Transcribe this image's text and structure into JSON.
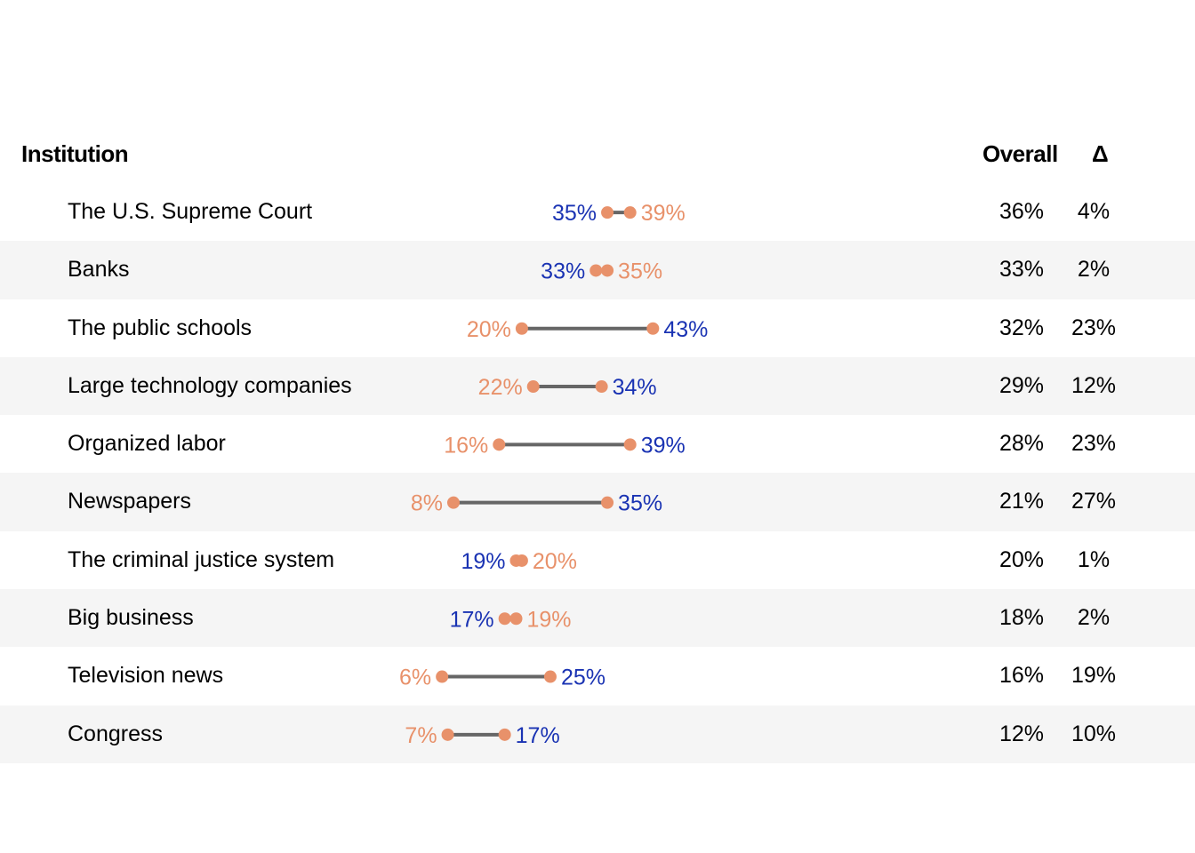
{
  "headers": {
    "institution": "Institution",
    "overall": "Overall",
    "delta": "Δ"
  },
  "colors": {
    "dot": "#e8916a",
    "segment": "#666666",
    "higher_label_blue": "#1a33b3",
    "lower_label_orange": "#e8916a",
    "band": "#f5f5f5"
  },
  "chart_data": {
    "type": "dumbbell",
    "title": "",
    "xlabel": "",
    "ylabel": "",
    "xlim": [
      0,
      50
    ],
    "grid": false,
    "rows": [
      {
        "institution": "The U.S. Supreme Court",
        "blue": 35,
        "orange": 39,
        "blue_label": "35%",
        "orange_label": "39%",
        "overall": "36%",
        "delta": "4%"
      },
      {
        "institution": "Banks",
        "blue": 33,
        "orange": 35,
        "blue_label": "33%",
        "orange_label": "35%",
        "overall": "33%",
        "delta": "2%"
      },
      {
        "institution": "The public schools",
        "blue": 43,
        "orange": 20,
        "blue_label": "43%",
        "orange_label": "20%",
        "overall": "32%",
        "delta": "23%"
      },
      {
        "institution": "Large technology companies",
        "blue": 34,
        "orange": 22,
        "blue_label": "34%",
        "orange_label": "22%",
        "overall": "29%",
        "delta": "12%"
      },
      {
        "institution": "Organized labor",
        "blue": 39,
        "orange": 16,
        "blue_label": "39%",
        "orange_label": "16%",
        "overall": "28%",
        "delta": "23%"
      },
      {
        "institution": "Newspapers",
        "blue": 35,
        "orange": 8,
        "blue_label": "35%",
        "orange_label": "8%",
        "overall": "21%",
        "delta": "27%"
      },
      {
        "institution": "The criminal justice system",
        "blue": 19,
        "orange": 20,
        "blue_label": "19%",
        "orange_label": "20%",
        "overall": "20%",
        "delta": "1%"
      },
      {
        "institution": "Big business",
        "blue": 17,
        "orange": 19,
        "blue_label": "17%",
        "orange_label": "19%",
        "overall": "18%",
        "delta": "2%"
      },
      {
        "institution": "Television news",
        "blue": 25,
        "orange": 6,
        "blue_label": "25%",
        "orange_label": "6%",
        "overall": "16%",
        "delta": "19%"
      },
      {
        "institution": "Congress",
        "blue": 17,
        "orange": 7,
        "blue_label": "17%",
        "orange_label": "7%",
        "overall": "12%",
        "delta": "10%"
      }
    ]
  }
}
